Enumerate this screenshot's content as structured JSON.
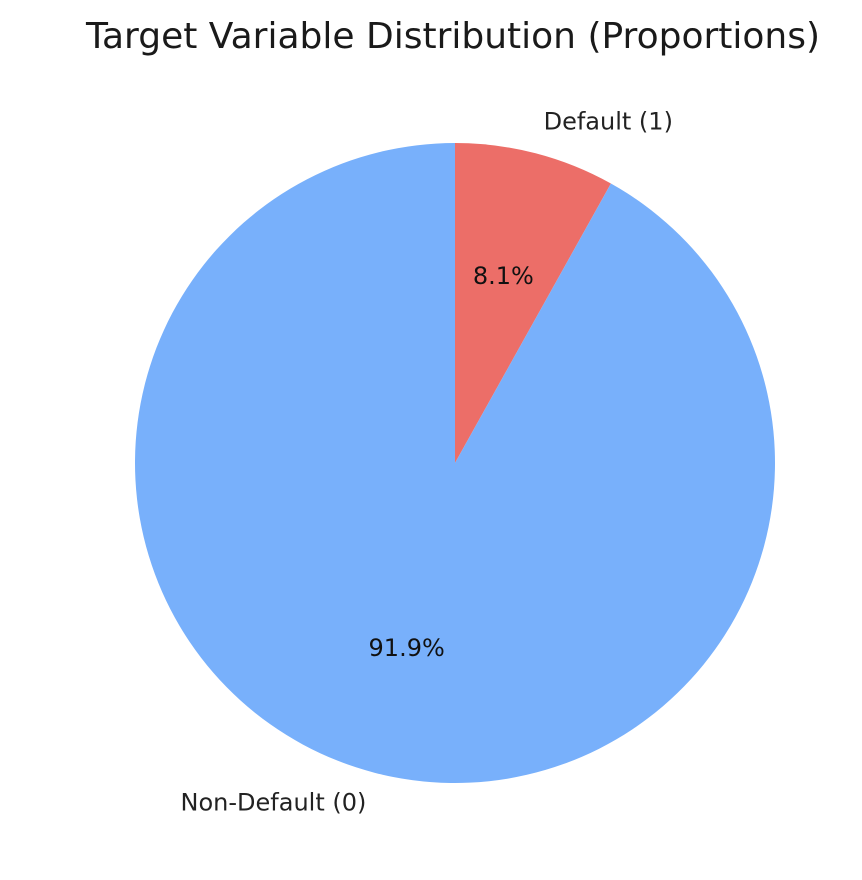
{
  "chart_data": {
    "type": "pie",
    "title": "Target Variable Distribution (Proportions)",
    "start_angle_deg": 90,
    "direction": "clockwise",
    "slices": [
      {
        "label": "Default (1)",
        "value": 8.1,
        "pct_label": "8.1%",
        "color": "#ec6e68"
      },
      {
        "label": "Non-Default (0)",
        "value": 91.9,
        "pct_label": "91.9%",
        "color": "#78b0fb"
      }
    ],
    "legend": "none"
  }
}
